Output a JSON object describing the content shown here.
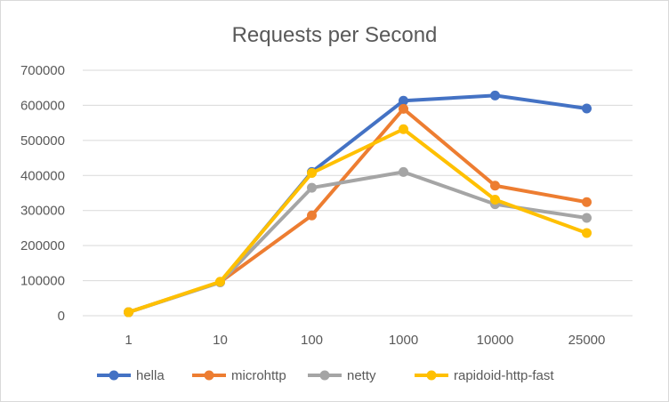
{
  "chart_data": {
    "type": "line",
    "title": "Requests per Second",
    "xlabel": "",
    "ylabel": "",
    "categories": [
      "1",
      "10",
      "100",
      "1000",
      "10000",
      "25000"
    ],
    "ylim": [
      0,
      700000
    ],
    "yticks": [
      "0",
      "100000",
      "200000",
      "300000",
      "400000",
      "500000",
      "600000",
      "700000"
    ],
    "grid": true,
    "legend_position": "bottom",
    "series": [
      {
        "name": "hella",
        "color": "#4472C4",
        "values": [
          10000,
          96000,
          410000,
          613000,
          628000,
          591000
        ]
      },
      {
        "name": "microhttp",
        "color": "#ED7D31",
        "values": [
          10000,
          96000,
          286000,
          590000,
          371000,
          324000
        ]
      },
      {
        "name": "netty",
        "color": "#A5A5A5",
        "values": [
          10000,
          95000,
          365000,
          410000,
          318000,
          279000
        ]
      },
      {
        "name": "rapidoid-http-fast",
        "color": "#FFC000",
        "values": [
          10000,
          97000,
          407000,
          532000,
          331000,
          236000
        ]
      }
    ]
  }
}
